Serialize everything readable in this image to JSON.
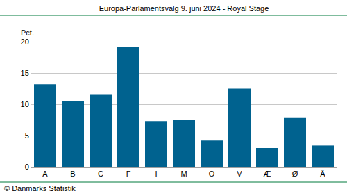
{
  "chart_data": {
    "type": "bar",
    "title": "Europa-Parlamentsvalg 9. juni 2024 - Royal Stage",
    "ylabel": "Pct.",
    "annotations": [
      "© Danmarks Statistik"
    ],
    "categories": [
      "A",
      "B",
      "C",
      "F",
      "I",
      "M",
      "O",
      "V",
      "Æ",
      "Ø",
      "Å"
    ],
    "values": [
      13.2,
      10.5,
      11.6,
      19.2,
      7.3,
      7.5,
      4.2,
      12.5,
      3.0,
      7.8,
      3.4
    ],
    "color": "#00628f",
    "ylim": [
      0,
      20
    ],
    "yticks": [
      0,
      5,
      10,
      15,
      20
    ],
    "grid": true
  }
}
